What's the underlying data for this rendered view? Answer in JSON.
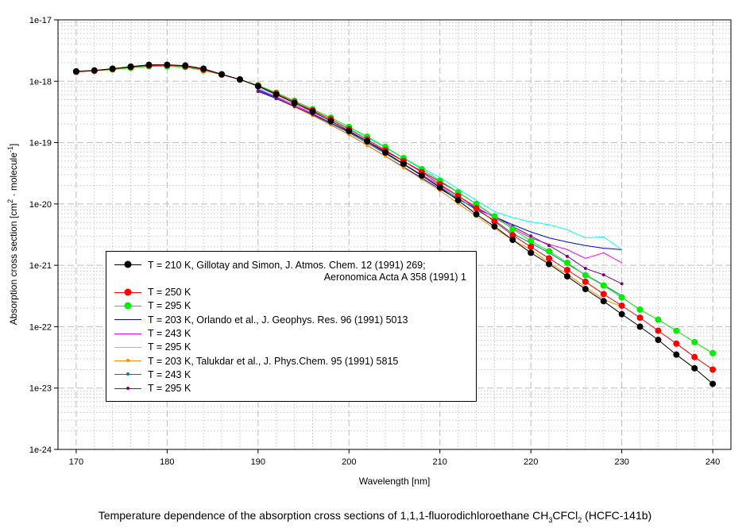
{
  "chart_data": {
    "type": "line",
    "title_main": "Temperature dependence of the absorption cross sections of 1,1,1-fluorodichloroethane ",
    "title_formula": [
      "CH",
      "3",
      "CFCl",
      "2"
    ],
    "title_suffix": " (HCFC-141b)",
    "xlabel": "Wavelength [nm]",
    "ylabel_parts": [
      "Absorption cross section [cm",
      "2",
      " · molecule",
      "-1",
      "]"
    ],
    "xlim": [
      168,
      242
    ],
    "ylim": [
      1e-24,
      1e-17
    ],
    "yscale": "log",
    "xticks": [
      170,
      180,
      190,
      200,
      210,
      220,
      230,
      240
    ],
    "yticks": [
      "1e-17",
      "1e-18",
      "1e-19",
      "1e-20",
      "1e-21",
      "1e-22",
      "1e-23",
      "1e-24"
    ],
    "grid": true,
    "legend_position": "lower-left",
    "series": [
      {
        "name": "T = 210 K, Gillotay and Simon, J. Atmos. Chem. 12 (1991) 269;",
        "name2": "Aeronomica Acta A 358 (1991) 1",
        "color": "#000000",
        "marker": "large",
        "x": [
          170,
          172,
          174,
          176,
          178,
          180,
          182,
          184,
          186,
          188,
          190,
          192,
          194,
          196,
          198,
          200,
          202,
          204,
          206,
          208,
          210,
          212,
          214,
          216,
          218,
          220,
          222,
          224,
          226,
          228,
          230,
          232,
          234,
          236,
          238,
          240
        ],
        "y": [
          1.45e-18,
          1.5e-18,
          1.6e-18,
          1.73e-18,
          1.85e-18,
          1.85e-18,
          1.8e-18,
          1.6e-18,
          1.3e-18,
          1.07e-18,
          8.3e-19,
          6.1e-19,
          4.4e-19,
          3.2e-19,
          2.25e-19,
          1.55e-19,
          1.05e-19,
          6.9e-20,
          4.5e-20,
          2.9e-20,
          1.85e-20,
          1.15e-20,
          6.8e-21,
          4.3e-21,
          2.6e-21,
          1.6e-21,
          1.05e-21,
          6.6e-22,
          4.1e-22,
          2.6e-22,
          1.6e-22,
          1e-22,
          6.1e-23,
          3.5e-23,
          2.1e-23,
          1.17e-23
        ]
      },
      {
        "name": "T = 250 K",
        "color": "#ff0000",
        "marker": "large",
        "x": [
          170,
          172,
          174,
          176,
          178,
          180,
          182,
          184,
          186,
          188,
          190,
          192,
          194,
          196,
          198,
          200,
          202,
          204,
          206,
          208,
          210,
          212,
          214,
          216,
          218,
          220,
          222,
          224,
          226,
          228,
          230,
          232,
          234,
          236,
          238,
          240
        ],
        "y": [
          1.42e-18,
          1.48e-18,
          1.58e-18,
          1.7e-18,
          1.8e-18,
          1.82e-18,
          1.75e-18,
          1.55e-18,
          1.28e-18,
          1.06e-18,
          8.4e-19,
          6.3e-19,
          4.6e-19,
          3.35e-19,
          2.4e-19,
          1.65e-19,
          1.12e-19,
          7.5e-20,
          5e-20,
          3.3e-20,
          2.1e-20,
          1.35e-20,
          8.5e-21,
          5.2e-21,
          3.1e-21,
          2e-21,
          1.3e-21,
          8.4e-22,
          5.4e-22,
          3.4e-22,
          2.2e-22,
          1.4e-22,
          8.6e-23,
          5.3e-23,
          3.2e-23,
          2e-23
        ]
      },
      {
        "name": "T = 295 K",
        "color": "#00ee00",
        "marker": "large",
        "x": [
          170,
          172,
          174,
          176,
          178,
          180,
          182,
          184,
          186,
          188,
          190,
          192,
          194,
          196,
          198,
          200,
          202,
          204,
          206,
          208,
          210,
          212,
          214,
          216,
          218,
          220,
          222,
          224,
          226,
          228,
          230,
          232,
          234,
          236,
          238,
          240
        ],
        "y": [
          1.45e-18,
          1.48e-18,
          1.55e-18,
          1.65e-18,
          1.75e-18,
          1.75e-18,
          1.7e-18,
          1.5e-18,
          1.28e-18,
          1.07e-18,
          8.6e-19,
          6.5e-19,
          4.8e-19,
          3.5e-19,
          2.55e-19,
          1.8e-19,
          1.25e-19,
          8.5e-20,
          5.6e-20,
          3.7e-20,
          2.4e-20,
          1.55e-20,
          1e-20,
          6.3e-21,
          3.9e-21,
          2.5e-21,
          1.7e-21,
          1.1e-21,
          6.9e-22,
          4.7e-22,
          3e-22,
          1.9e-22,
          1.3e-22,
          8.6e-23,
          5.6e-23,
          3.7e-23
        ]
      },
      {
        "name": "T = 203 K, Orlando et al., J. Geophys. Res. 96 (1991) 5013",
        "color": "#0000dd",
        "marker": "none",
        "x": [
          190,
          192,
          194,
          196,
          198,
          200,
          202,
          204,
          206,
          208,
          210,
          212,
          214,
          216,
          218,
          220,
          222,
          224,
          226,
          228,
          230
        ],
        "y": [
          7.2e-19,
          5.4e-19,
          3.9e-19,
          2.8e-19,
          1.95e-19,
          1.35e-19,
          9e-20,
          6e-20,
          4e-20,
          2.65e-20,
          1.75e-20,
          1.2e-20,
          8.4e-21,
          6.2e-21,
          4.6e-21,
          3.5e-21,
          2.8e-21,
          2.4e-21,
          2.1e-21,
          1.9e-21,
          1.8e-21
        ]
      },
      {
        "name": "T = 243 K",
        "color": "#ff00ff",
        "marker": "none",
        "x": [
          190,
          192,
          194,
          196,
          198,
          200,
          202,
          204,
          206,
          208,
          210,
          212,
          214,
          216,
          218,
          220,
          222,
          224,
          226,
          228,
          230
        ],
        "y": [
          7.4e-19,
          5.6e-19,
          4.1e-19,
          3e-19,
          2.1e-19,
          1.45e-19,
          1e-19,
          6.7e-20,
          4.5e-20,
          3e-20,
          2e-20,
          1.35e-20,
          9e-21,
          6e-21,
          4e-21,
          2.8e-21,
          2.2e-21,
          1.8e-21,
          1.3e-21,
          1.6e-21,
          1.1e-21
        ]
      },
      {
        "name": "T = 295 K",
        "color": "#00ffff",
        "marker": "none",
        "x": [
          190,
          192,
          194,
          196,
          198,
          200,
          202,
          204,
          206,
          208,
          210,
          212,
          214,
          216,
          218,
          220,
          222,
          224,
          226,
          228,
          230
        ],
        "y": [
          7.8e-19,
          6e-19,
          4.5e-19,
          3.3e-19,
          2.4e-19,
          1.7e-19,
          1.2e-19,
          8.2e-20,
          5.6e-20,
          3.9e-20,
          2.7e-20,
          1.75e-20,
          1.15e-20,
          7.5e-21,
          6e-21,
          5.1e-21,
          4.6e-21,
          3.8e-21,
          2.8e-21,
          2.9e-21,
          1.8e-21
        ]
      },
      {
        "name": "T = 203 K, Talukdar et al., J. Phys.Chem. 95 (1991) 5815",
        "color": "#ff8800",
        "marker": "small",
        "x": [
          190,
          192,
          194,
          196,
          198,
          200,
          202,
          204,
          206,
          208,
          210,
          212,
          214,
          216,
          218,
          220,
          222,
          224,
          226,
          228,
          230
        ],
        "y": [
          6.9e-19,
          5.2e-19,
          3.8e-19,
          2.75e-19,
          1.95e-19,
          1.35e-19,
          9e-20,
          6e-20,
          3.9e-20,
          2.55e-20,
          1.65e-20,
          1.02e-20,
          6.3e-21,
          4e-21,
          2.6e-21,
          1.8e-21,
          1.1e-21,
          7.2e-22,
          4.4e-22,
          2.8e-22,
          2.1e-22
        ]
      },
      {
        "name": "T = 243 K",
        "color": "#008080",
        "marker": "small",
        "x": [
          190,
          192,
          194,
          196,
          198,
          200,
          202,
          204,
          206,
          208,
          210,
          212,
          214,
          216,
          218,
          220,
          222,
          224,
          226,
          228,
          230
        ],
        "y": [
          7e-19,
          5.3e-19,
          3.9e-19,
          2.85e-19,
          2.05e-19,
          1.45e-19,
          9.8e-20,
          6.6e-20,
          4.4e-20,
          2.9e-20,
          1.9e-20,
          1.25e-20,
          8e-21,
          5.4e-21,
          3.3e-21,
          2.3e-21,
          1.6e-21,
          1.05e-21,
          7e-22,
          4.8e-22,
          3.2e-22
        ]
      },
      {
        "name": "T = 295 K",
        "color": "#800080",
        "marker": "small",
        "x": [
          190,
          192,
          194,
          196,
          198,
          200,
          202,
          204,
          206,
          208,
          210,
          212,
          214,
          216,
          218,
          220,
          222,
          224,
          226,
          228,
          230
        ],
        "y": [
          6.8e-19,
          5.2e-19,
          3.9e-19,
          2.9e-19,
          2.1e-19,
          1.5e-19,
          1.05e-19,
          7.2e-20,
          5e-20,
          3.4e-20,
          2.3e-20,
          1.55e-20,
          1e-20,
          6.3e-21,
          4.3e-21,
          3e-21,
          2.1e-21,
          1.4e-21,
          8.9e-22,
          7e-22,
          5e-22
        ]
      }
    ]
  }
}
